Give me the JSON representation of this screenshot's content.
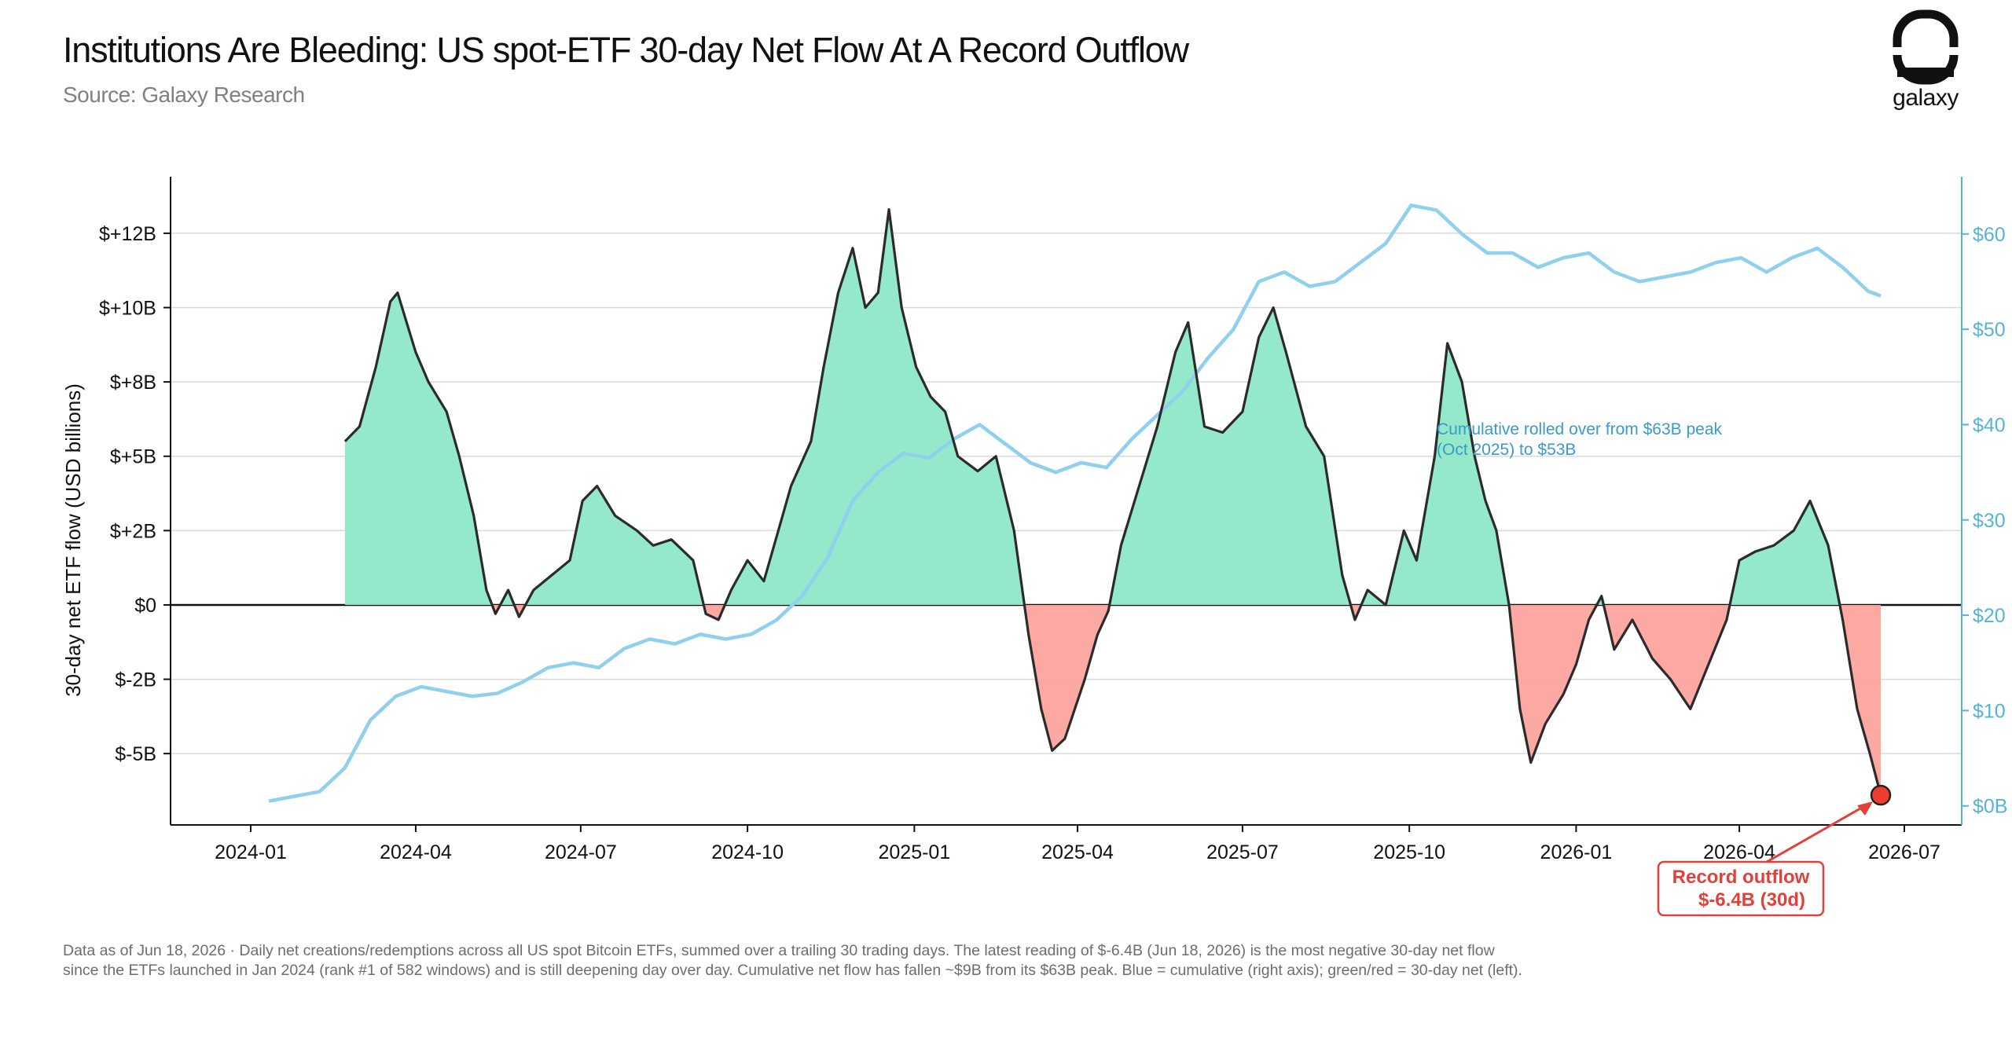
{
  "header": {
    "title": "Institutions Are Bleeding: US spot-ETF 30-day Net Flow At A Record Outflow",
    "subtitle": "Source: Galaxy Research",
    "logo_text": "galaxy"
  },
  "footnote": "Data as of Jun 18, 2026 · Daily net creations/redemptions across all US spot Bitcoin ETFs, summed over a trailing 30 trading days. The latest reading of $-6.4B (Jun 18, 2026) is the most negative 30-day net flow since the ETFs launched in Jan 2024 (rank #1 of 582 windows) and is still deepening day over day. Cumulative net flow has fallen ~$9B from its $63B peak. Blue = cumulative (right axis); green/red = 30-day net (left).",
  "colors": {
    "positive_fill": "#8de8c7",
    "negative_fill": "#fca39e",
    "net_line": "#2b2b2b",
    "cumulative_line": "#8fd0ee",
    "right_axis": "#55b3d8",
    "annotation_red": "#e0413a",
    "annotation_blue": "#3a9ac8"
  },
  "chart_data": {
    "type": "area",
    "xlabel": "",
    "ylabel": "30-day net ETF flow (USD billions)",
    "x_ticks": [
      "2024-01",
      "2024-04",
      "2024-07",
      "2024-10",
      "2025-01",
      "2025-04",
      "2025-07",
      "2025-10",
      "2026-01",
      "2026-04",
      "2026-07"
    ],
    "y_left_ticks": [
      {
        "value": 12.5,
        "label": "$+12B"
      },
      {
        "value": 10,
        "label": "$+10B"
      },
      {
        "value": 7.5,
        "label": "$+8B"
      },
      {
        "value": 5,
        "label": "$+5B"
      },
      {
        "value": 2.5,
        "label": "$+2B"
      },
      {
        "value": 0,
        "label": "$0"
      },
      {
        "value": -2.5,
        "label": "$-2B"
      },
      {
        "value": -5,
        "label": "$-5B"
      }
    ],
    "y_right_ticks": [
      {
        "value": 60,
        "label": "$60"
      },
      {
        "value": 50,
        "label": "$50"
      },
      {
        "value": 40,
        "label": "$40"
      },
      {
        "value": 30,
        "label": "$30"
      },
      {
        "value": 20,
        "label": "$20"
      },
      {
        "value": 10,
        "label": "$10"
      },
      {
        "value": 0,
        "label": "$0B"
      }
    ],
    "ylim_left": [
      -7.4,
      14.4
    ],
    "ylim_right": [
      -2,
      66
    ],
    "grid": true,
    "series": [
      {
        "axis": "left",
        "style": "area-filled-by-sign",
        "points": [
          [
            "2024-02-22",
            5.5
          ],
          [
            "2024-03-01",
            6.0
          ],
          [
            "2024-03-10",
            8.0
          ],
          [
            "2024-03-18",
            10.2
          ],
          [
            "2024-03-22",
            10.5
          ],
          [
            "2024-04-01",
            8.5
          ],
          [
            "2024-04-08",
            7.5
          ],
          [
            "2024-04-18",
            6.5
          ],
          [
            "2024-04-25",
            5.0
          ],
          [
            "2024-05-03",
            3.0
          ],
          [
            "2024-05-10",
            0.5
          ],
          [
            "2024-05-15",
            -0.3
          ],
          [
            "2024-05-22",
            0.5
          ],
          [
            "2024-05-28",
            -0.4
          ],
          [
            "2024-06-05",
            0.5
          ],
          [
            "2024-06-15",
            1.0
          ],
          [
            "2024-06-25",
            1.5
          ],
          [
            "2024-07-02",
            3.5
          ],
          [
            "2024-07-10",
            4.0
          ],
          [
            "2024-07-20",
            3.0
          ],
          [
            "2024-08-01",
            2.5
          ],
          [
            "2024-08-10",
            2.0
          ],
          [
            "2024-08-20",
            2.2
          ],
          [
            "2024-09-01",
            1.5
          ],
          [
            "2024-09-08",
            -0.3
          ],
          [
            "2024-09-15",
            -0.5
          ],
          [
            "2024-09-22",
            0.5
          ],
          [
            "2024-10-01",
            1.5
          ],
          [
            "2024-10-10",
            0.8
          ],
          [
            "2024-10-18",
            2.5
          ],
          [
            "2024-10-25",
            4.0
          ],
          [
            "2024-11-05",
            5.5
          ],
          [
            "2024-11-12",
            8.0
          ],
          [
            "2024-11-20",
            10.5
          ],
          [
            "2024-11-28",
            12.0
          ],
          [
            "2024-12-05",
            10.0
          ],
          [
            "2024-12-12",
            10.5
          ],
          [
            "2024-12-18",
            13.3
          ],
          [
            "2024-12-25",
            10.0
          ],
          [
            "2025-01-02",
            8.0
          ],
          [
            "2025-01-10",
            7.0
          ],
          [
            "2025-01-18",
            6.5
          ],
          [
            "2025-01-25",
            5.0
          ],
          [
            "2025-02-05",
            4.5
          ],
          [
            "2025-02-15",
            5.0
          ],
          [
            "2025-02-25",
            2.5
          ],
          [
            "2025-03-05",
            -1.0
          ],
          [
            "2025-03-12",
            -3.5
          ],
          [
            "2025-03-18",
            -4.9
          ],
          [
            "2025-03-25",
            -4.5
          ],
          [
            "2025-04-05",
            -2.5
          ],
          [
            "2025-04-12",
            -1.0
          ],
          [
            "2025-04-18",
            -0.2
          ],
          [
            "2025-04-25",
            2.0
          ],
          [
            "2025-05-05",
            4.0
          ],
          [
            "2025-05-15",
            6.0
          ],
          [
            "2025-05-25",
            8.5
          ],
          [
            "2025-06-01",
            9.5
          ],
          [
            "2025-06-10",
            6.0
          ],
          [
            "2025-06-20",
            5.8
          ],
          [
            "2025-07-01",
            6.5
          ],
          [
            "2025-07-10",
            9.0
          ],
          [
            "2025-07-18",
            10.0
          ],
          [
            "2025-07-25",
            8.5
          ],
          [
            "2025-08-05",
            6.0
          ],
          [
            "2025-08-15",
            5.0
          ],
          [
            "2025-08-25",
            1.0
          ],
          [
            "2025-09-01",
            -0.5
          ],
          [
            "2025-09-08",
            0.5
          ],
          [
            "2025-09-18",
            0.0
          ],
          [
            "2025-09-28",
            2.5
          ],
          [
            "2025-10-05",
            1.5
          ],
          [
            "2025-10-15",
            5.0
          ],
          [
            "2025-10-22",
            8.8
          ],
          [
            "2025-10-30",
            7.5
          ],
          [
            "2025-11-06",
            5.0
          ],
          [
            "2025-11-12",
            3.5
          ],
          [
            "2025-11-18",
            2.5
          ],
          [
            "2025-11-25",
            0.0
          ],
          [
            "2025-12-01",
            -3.5
          ],
          [
            "2025-12-07",
            -5.3
          ],
          [
            "2025-12-15",
            -4.0
          ],
          [
            "2025-12-25",
            -3.0
          ],
          [
            "2026-01-01",
            -2.0
          ],
          [
            "2026-01-08",
            -0.5
          ],
          [
            "2026-01-15",
            0.3
          ],
          [
            "2026-01-22",
            -1.5
          ],
          [
            "2026-02-01",
            -0.5
          ],
          [
            "2026-02-12",
            -1.8
          ],
          [
            "2026-02-22",
            -2.5
          ],
          [
            "2026-03-05",
            -3.5
          ],
          [
            "2026-03-15",
            -2.0
          ],
          [
            "2026-03-25",
            -0.5
          ],
          [
            "2026-04-01",
            1.5
          ],
          [
            "2026-04-10",
            1.8
          ],
          [
            "2026-04-20",
            2.0
          ],
          [
            "2026-05-01",
            2.5
          ],
          [
            "2026-05-10",
            3.5
          ],
          [
            "2026-05-20",
            2.0
          ],
          [
            "2026-05-28",
            -0.5
          ],
          [
            "2026-06-05",
            -3.5
          ],
          [
            "2026-06-12",
            -5.0
          ],
          [
            "2026-06-18",
            -6.4
          ]
        ]
      },
      {
        "axis": "right",
        "style": "line",
        "points": [
          [
            "2024-01-11",
            0.5
          ],
          [
            "2024-01-25",
            1.0
          ],
          [
            "2024-02-08",
            1.5
          ],
          [
            "2024-02-22",
            4.0
          ],
          [
            "2024-03-07",
            9.0
          ],
          [
            "2024-03-21",
            11.5
          ],
          [
            "2024-04-04",
            12.5
          ],
          [
            "2024-04-18",
            12.0
          ],
          [
            "2024-05-02",
            11.5
          ],
          [
            "2024-05-16",
            11.8
          ],
          [
            "2024-05-30",
            13.0
          ],
          [
            "2024-06-13",
            14.5
          ],
          [
            "2024-06-27",
            15.0
          ],
          [
            "2024-07-11",
            14.5
          ],
          [
            "2024-07-25",
            16.5
          ],
          [
            "2024-08-08",
            17.5
          ],
          [
            "2024-08-22",
            17.0
          ],
          [
            "2024-09-05",
            18.0
          ],
          [
            "2024-09-19",
            17.5
          ],
          [
            "2024-10-03",
            18.0
          ],
          [
            "2024-10-17",
            19.5
          ],
          [
            "2024-10-31",
            22.0
          ],
          [
            "2024-11-14",
            26.0
          ],
          [
            "2024-11-28",
            32.0
          ],
          [
            "2024-12-12",
            35.0
          ],
          [
            "2024-12-26",
            37.0
          ],
          [
            "2025-01-09",
            36.5
          ],
          [
            "2025-01-23",
            38.5
          ],
          [
            "2025-02-06",
            40.0
          ],
          [
            "2025-02-20",
            38.0
          ],
          [
            "2025-03-06",
            36.0
          ],
          [
            "2025-03-20",
            35.0
          ],
          [
            "2025-04-03",
            36.0
          ],
          [
            "2025-04-17",
            35.5
          ],
          [
            "2025-05-01",
            38.5
          ],
          [
            "2025-05-15",
            41.0
          ],
          [
            "2025-05-29",
            43.5
          ],
          [
            "2025-06-12",
            47.0
          ],
          [
            "2025-06-26",
            50.0
          ],
          [
            "2025-07-10",
            55.0
          ],
          [
            "2025-07-24",
            56.0
          ],
          [
            "2025-08-07",
            54.5
          ],
          [
            "2025-08-21",
            55.0
          ],
          [
            "2025-09-04",
            57.0
          ],
          [
            "2025-09-18",
            59.0
          ],
          [
            "2025-10-02",
            63.0
          ],
          [
            "2025-10-16",
            62.5
          ],
          [
            "2025-10-30",
            60.0
          ],
          [
            "2025-11-13",
            58.0
          ],
          [
            "2025-11-27",
            58.0
          ],
          [
            "2025-12-11",
            56.5
          ],
          [
            "2025-12-25",
            57.5
          ],
          [
            "2026-01-08",
            58.0
          ],
          [
            "2026-01-22",
            56.0
          ],
          [
            "2026-02-05",
            55.0
          ],
          [
            "2026-02-19",
            55.5
          ],
          [
            "2026-03-05",
            56.0
          ],
          [
            "2026-03-19",
            57.0
          ],
          [
            "2026-04-02",
            57.5
          ],
          [
            "2026-04-16",
            56.0
          ],
          [
            "2026-04-30",
            57.5
          ],
          [
            "2026-05-14",
            58.5
          ],
          [
            "2026-05-28",
            56.5
          ],
          [
            "2026-06-11",
            54.0
          ],
          [
            "2026-06-18",
            53.5
          ]
        ]
      }
    ],
    "annotations": [
      {
        "text_lines": [
          "Record outflow",
          "$-6.4B (30d)"
        ],
        "point": [
          "2026-06-18",
          -6.4
        ],
        "color": "red"
      },
      {
        "text_lines": [
          "Cumulative rolled over from $63B peak",
          "(Oct 2025) to $53B"
        ],
        "color": "blue"
      }
    ]
  }
}
